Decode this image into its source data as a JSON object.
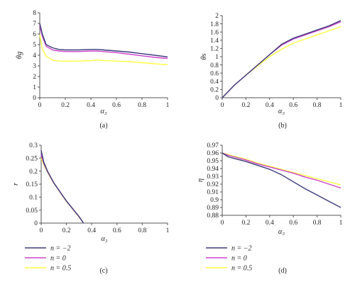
{
  "series_colors": {
    "n=-2": "#3b3b7a",
    "n=0": "#cc44cc",
    "n=0.5": "#ffff44"
  },
  "chart_data": [
    {
      "type": "line",
      "panel": "(a)",
      "xlabel": "α₃",
      "ylabel": "θg",
      "xlim": [
        0,
        1
      ],
      "ylim": [
        0,
        8
      ],
      "xticks": [
        "0",
        "0.2",
        "0.4",
        "0.6",
        "0.8",
        "1"
      ],
      "yticks": [
        "0",
        "1",
        "2",
        "3",
        "4",
        "5",
        "6",
        "7",
        "8"
      ],
      "x": [
        0,
        0.02,
        0.05,
        0.1,
        0.15,
        0.2,
        0.3,
        0.4,
        0.45,
        0.5,
        0.6,
        0.7,
        0.8,
        0.9,
        1.0
      ],
      "series": [
        {
          "key": "n=-2",
          "values": [
            7.0,
            6.0,
            5.0,
            4.7,
            4.55,
            4.5,
            4.5,
            4.55,
            4.55,
            4.5,
            4.4,
            4.3,
            4.15,
            4.0,
            3.85
          ]
        },
        {
          "key": "n=0",
          "values": [
            6.8,
            5.8,
            4.85,
            4.5,
            4.4,
            4.35,
            4.35,
            4.4,
            4.4,
            4.35,
            4.25,
            4.1,
            3.95,
            3.8,
            3.7
          ]
        },
        {
          "key": "n=0.5",
          "values": [
            5.9,
            4.6,
            3.9,
            3.55,
            3.45,
            3.45,
            3.45,
            3.5,
            3.55,
            3.5,
            3.45,
            3.4,
            3.3,
            3.2,
            3.1
          ]
        }
      ]
    },
    {
      "type": "line",
      "panel": "(b)",
      "xlabel": "α₃",
      "ylabel": "θs",
      "xlim": [
        0,
        1
      ],
      "ylim": [
        0,
        2
      ],
      "xticks": [
        "0",
        "0.2",
        "0.4",
        "0.6",
        "0.8",
        "1"
      ],
      "yticks": [
        "0",
        "0.2",
        "0.4",
        "0.6",
        "0.8",
        "1",
        "1.2",
        "1.4",
        "1.6",
        "1.8",
        "2"
      ],
      "x": [
        0,
        0.1,
        0.2,
        0.3,
        0.4,
        0.5,
        0.6,
        0.7,
        0.8,
        0.9,
        1.0
      ],
      "series": [
        {
          "key": "n=-2",
          "values": [
            0,
            0.3,
            0.55,
            0.8,
            1.05,
            1.3,
            1.45,
            1.55,
            1.65,
            1.75,
            1.88
          ]
        },
        {
          "key": "n=0",
          "values": [
            0,
            0.3,
            0.55,
            0.8,
            1.05,
            1.28,
            1.43,
            1.53,
            1.63,
            1.73,
            1.85
          ]
        },
        {
          "key": "n=0.5",
          "values": [
            0,
            0.3,
            0.55,
            0.78,
            1.0,
            1.18,
            1.33,
            1.43,
            1.53,
            1.63,
            1.73
          ]
        }
      ]
    },
    {
      "type": "line",
      "panel": "(c)",
      "xlabel": "α₃",
      "ylabel": "r",
      "xlim": [
        0,
        1
      ],
      "ylim": [
        0,
        0.3
      ],
      "xticks": [
        "0",
        "0.2",
        "0.4",
        "0.6",
        "0.8",
        "1"
      ],
      "yticks": [
        "0",
        "0.05",
        "0.1",
        "0.15",
        "0.2",
        "0.25",
        "0.3"
      ],
      "x": [
        0,
        0.02,
        0.05,
        0.1,
        0.15,
        0.2,
        0.25,
        0.3,
        0.335
      ],
      "series": [
        {
          "key": "n=-2",
          "values": [
            0.28,
            0.235,
            0.2,
            0.155,
            0.12,
            0.085,
            0.055,
            0.025,
            0
          ]
        },
        {
          "key": "n=0",
          "values": [
            0.265,
            0.23,
            0.198,
            0.154,
            0.119,
            0.084,
            0.054,
            0.024,
            0
          ]
        },
        {
          "key": "n=0.5",
          "values": [
            0.25,
            0.225,
            0.196,
            0.153,
            0.118,
            0.083,
            0.053,
            0.023,
            0
          ]
        }
      ]
    },
    {
      "type": "line",
      "panel": "(d)",
      "xlabel": "α₃",
      "ylabel": "η",
      "xlim": [
        0,
        1
      ],
      "ylim": [
        0.88,
        0.97
      ],
      "xticks": [
        "0",
        "0.2",
        "0.4",
        "0.6",
        "0.8",
        "1"
      ],
      "yticks": [
        "0.88",
        "0.89",
        "0.9",
        "0.91",
        "0.92",
        "0.93",
        "0.94",
        "0.95",
        "0.96",
        "0.97"
      ],
      "x": [
        0,
        0.05,
        0.1,
        0.2,
        0.3,
        0.4,
        0.5,
        0.6,
        0.7,
        0.8,
        0.9,
        1.0
      ],
      "series": [
        {
          "key": "n=-2",
          "values": [
            0.96,
            0.955,
            0.953,
            0.949,
            0.944,
            0.939,
            0.932,
            0.923,
            0.914,
            0.906,
            0.898,
            0.89
          ]
        },
        {
          "key": "n=0",
          "values": [
            0.96,
            0.957,
            0.955,
            0.951,
            0.946,
            0.942,
            0.938,
            0.934,
            0.929,
            0.925,
            0.92,
            0.915
          ]
        },
        {
          "key": "n=0.5",
          "values": [
            0.96,
            0.958,
            0.956,
            0.952,
            0.947,
            0.943,
            0.939,
            0.935,
            0.931,
            0.927,
            0.923,
            0.919
          ]
        }
      ]
    }
  ],
  "legends": {
    "c": [
      "n = −2",
      "n = 0",
      "n = 0.5"
    ],
    "d": [
      "n = −2",
      "n = 0",
      "n = 0.5"
    ]
  }
}
